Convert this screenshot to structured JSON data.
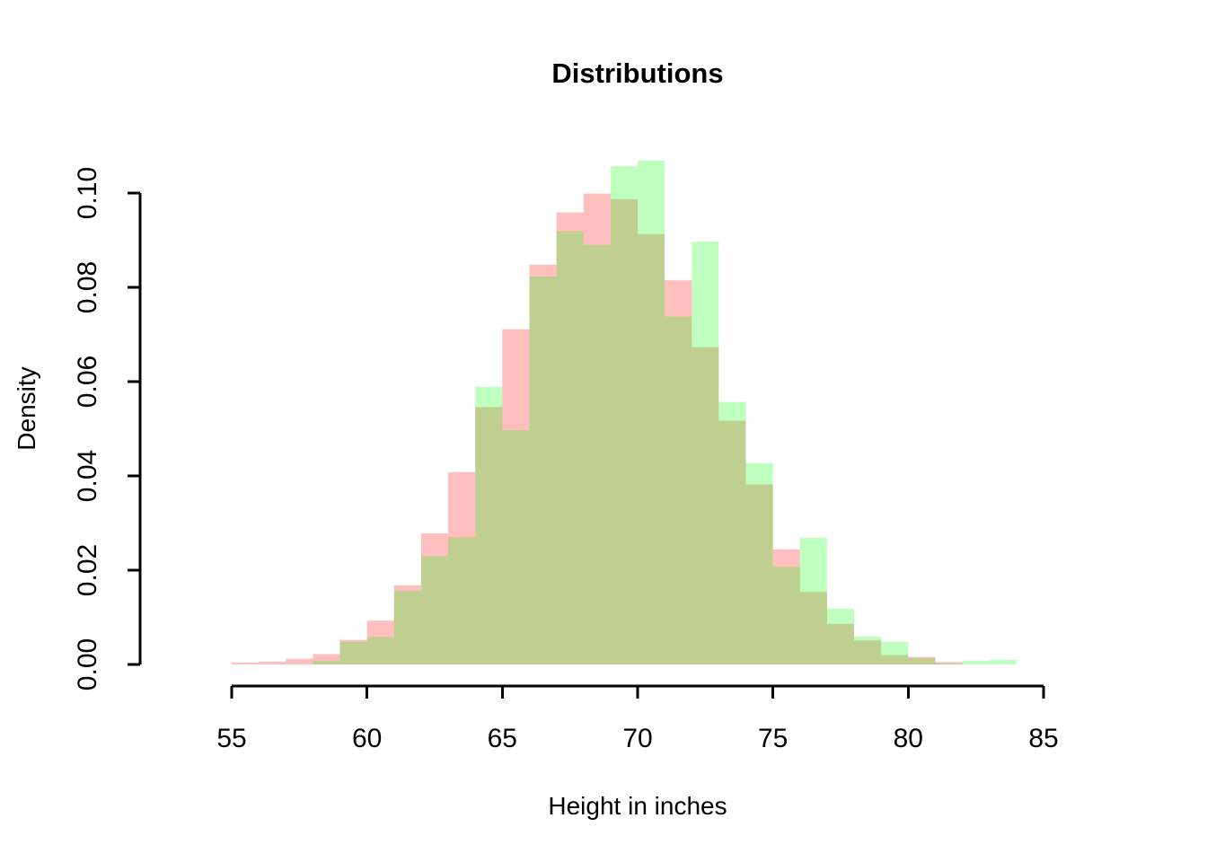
{
  "chart_data": {
    "type": "histogram",
    "title": "Distributions",
    "xlabel": "Height in inches",
    "ylabel": "Density",
    "xlim": [
      55,
      85
    ],
    "ylim": [
      0,
      0.1
    ],
    "x_ticks": [
      "55",
      "60",
      "65",
      "70",
      "75",
      "80",
      "85"
    ],
    "x_tick_values": [
      55,
      60,
      65,
      70,
      75,
      80,
      85
    ],
    "y_ticks": [
      "0.00",
      "0.02",
      "0.04",
      "0.06",
      "0.08",
      "0.10"
    ],
    "y_tick_values": [
      0,
      0.02,
      0.04,
      0.06,
      0.08,
      0.1
    ],
    "bin_width": 1,
    "grid": false,
    "legend": null,
    "axis_color": "#000000",
    "overlap_color_on_white": "#BFCF8F",
    "series": [
      {
        "name": "red-histogram",
        "fill": "#FF0000",
        "alpha": 0.25,
        "color_on_white": "#FFBFBF",
        "bins_start": 55,
        "densities": [
          0.0004,
          0.0006,
          0.0012,
          0.0022,
          0.0052,
          0.0093,
          0.0168,
          0.0278,
          0.0408,
          0.0546,
          0.0711,
          0.0848,
          0.0959,
          0.0999,
          0.0987,
          0.0913,
          0.0815,
          0.0673,
          0.0517,
          0.0382,
          0.0244,
          0.0154,
          0.0086,
          0.0051,
          0.002,
          0.0016,
          0.0005
        ]
      },
      {
        "name": "green-histogram",
        "fill": "#00FF00",
        "alpha": 0.25,
        "color_on_white": "#BFFFBF",
        "bins_start": 58,
        "densities": [
          0.0008,
          0.0048,
          0.0058,
          0.0156,
          0.023,
          0.027,
          0.0589,
          0.0497,
          0.0823,
          0.0919,
          0.089,
          0.1057,
          0.1069,
          0.0738,
          0.0897,
          0.0557,
          0.0427,
          0.0207,
          0.0269,
          0.0118,
          0.0059,
          0.0048,
          0.0013,
          0.0002,
          0.0008,
          0.001
        ]
      }
    ]
  }
}
